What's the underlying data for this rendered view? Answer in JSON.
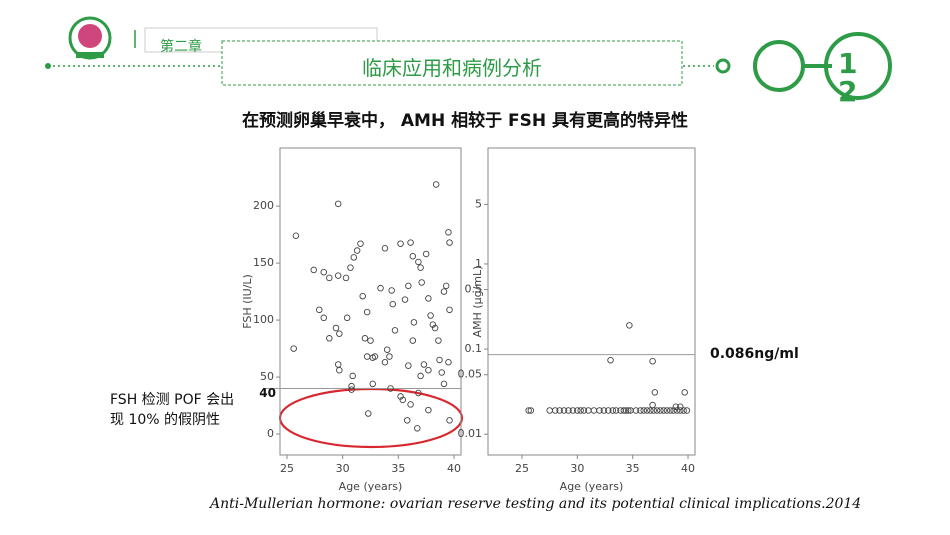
{
  "header": {
    "chapter": "第二章",
    "section": "临床应用和病例分析",
    "page_number": "12"
  },
  "title": "在预测卵巢早衰中， AMH 相较于 FSH 具有更高的特异性",
  "annotations": {
    "fsh_note": "FSH 检测 POF 会出现 10% 的假阴性",
    "amh_cutoff": "0.086ng/ml"
  },
  "citation": "Anti-Mullerian hormone: ovarian reserve testing and its potential clinical implications.2014",
  "chart_data": [
    {
      "type": "scatter",
      "xlabel": "Age (years)",
      "ylabel": "FSH (IU/L)",
      "color": "#444444",
      "hline": 40,
      "hline_color": "#999999",
      "xlim": [
        24.37,
        40.63
      ],
      "ylim": [
        -18.4,
        251
      ],
      "xticks": [
        25,
        30,
        35,
        40
      ],
      "yticks": [
        0,
        50,
        100,
        150,
        200
      ],
      "x": [
        25.8,
        25.6,
        29.6,
        27.4,
        28.3,
        28.8,
        29.6,
        30.3,
        30.7,
        31.0,
        31.3,
        31.6,
        27.9,
        28.3,
        28.8,
        29.4,
        29.7,
        29.6,
        29.7,
        30.4,
        30.9,
        30.8,
        30.8,
        31.8,
        32.2,
        32.0,
        32.5,
        32.7,
        32.2,
        32.9,
        33.4,
        33.8,
        34.0,
        34.2,
        33.8,
        34.4,
        34.5,
        34.7,
        35.2,
        35.6,
        35.9,
        36.1,
        36.3,
        36.4,
        36.3,
        35.9,
        36.8,
        37.0,
        37.1,
        37.5,
        37.7,
        37.9,
        38.1,
        38.3,
        38.4,
        38.6,
        38.7,
        38.9,
        39.1,
        39.3,
        39.5,
        39.6,
        39.6,
        39.5,
        39.1,
        37.3,
        37.7,
        37.0,
        34.3,
        35.2,
        35.4,
        35.8,
        36.1,
        36.7,
        37.7,
        39.6,
        32.3,
        36.8,
        32.7
      ],
      "y": [
        174,
        75,
        202,
        144,
        142,
        137,
        139,
        137,
        146,
        155,
        161,
        167,
        109,
        102,
        84,
        93,
        88,
        61,
        56,
        102,
        51,
        42,
        39,
        121,
        107,
        84,
        82,
        67,
        68,
        68,
        128,
        163,
        74,
        68,
        63,
        126,
        114,
        91,
        167,
        118,
        130,
        168,
        156,
        98,
        82,
        60,
        151,
        146,
        133,
        158,
        119,
        104,
        96,
        93,
        219,
        82,
        65,
        54,
        125,
        130,
        177,
        168,
        109,
        63,
        44,
        61,
        56,
        51,
        40,
        33,
        30,
        12,
        26,
        5,
        21,
        12,
        18,
        36,
        44
      ]
    },
    {
      "type": "scatter",
      "xlabel": "Age (years)",
      "ylabel": "AMH (µg/mL)",
      "color": "#444444",
      "yscale": "log",
      "hline": 0.086,
      "hline_color": "#999999",
      "xlim": [
        21.93,
        40.63
      ],
      "ylim": [
        0.0057,
        23
      ],
      "xticks": [
        25,
        30,
        35,
        40
      ],
      "yticks": [
        0.01,
        0.05,
        0.1,
        0.5,
        1,
        5
      ],
      "x": [
        25.6,
        25.8,
        27.5,
        28.0,
        28.4,
        28.8,
        29.2,
        29.6,
        30.0,
        30.3,
        30.6,
        31.0,
        31.5,
        32.0,
        32.4,
        32.8,
        33.2,
        33.5,
        33.9,
        34.2,
        34.4,
        34.6,
        34.8,
        35.3,
        35.7,
        36.0,
        36.3,
        36.6,
        36.9,
        37.2,
        37.5,
        37.8,
        38.1,
        38.4,
        38.7,
        39.0,
        39.3,
        39.6,
        39.9,
        34.7,
        33.0,
        36.8,
        37.0,
        39.7,
        38.9,
        36.8,
        39.3
      ],
      "y": [
        0.019,
        0.019,
        0.019,
        0.019,
        0.019,
        0.019,
        0.019,
        0.019,
        0.019,
        0.019,
        0.019,
        0.019,
        0.019,
        0.019,
        0.019,
        0.019,
        0.019,
        0.019,
        0.019,
        0.019,
        0.019,
        0.019,
        0.019,
        0.019,
        0.019,
        0.019,
        0.019,
        0.019,
        0.019,
        0.019,
        0.019,
        0.019,
        0.019,
        0.019,
        0.019,
        0.019,
        0.019,
        0.019,
        0.019,
        0.19,
        0.074,
        0.072,
        0.031,
        0.031,
        0.021,
        0.022,
        0.021
      ]
    }
  ]
}
